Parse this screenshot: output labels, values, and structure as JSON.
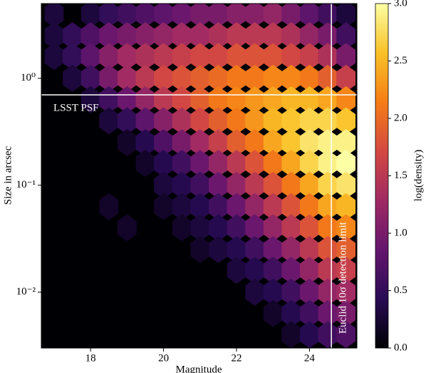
{
  "chart_data": {
    "type": "hexbin",
    "xlabel": "Magnitude",
    "ylabel": "Size in arcsec",
    "colorbar_label": "log(density)",
    "colormap": "inferno",
    "xlim": [
      16.65,
      25.3
    ],
    "xticks": [
      18,
      20,
      22,
      24
    ],
    "ylim": [
      0.003,
      5
    ],
    "yscale": "log",
    "yticks": [
      {
        "value": 1,
        "label": "10⁰"
      },
      {
        "value": 0.1,
        "label": "10⁻¹"
      },
      {
        "value": 0.01,
        "label": "10⁻²"
      }
    ],
    "clim": [
      0,
      3
    ],
    "cticks": [
      {
        "value": 0,
        "label": "0.0"
      },
      {
        "value": 0.5,
        "label": "0.5"
      },
      {
        "value": 1,
        "label": "1.0"
      },
      {
        "value": 1.5,
        "label": "1.5"
      },
      {
        "value": 2,
        "label": "2.0"
      },
      {
        "value": 2.5,
        "label": "2.5"
      },
      {
        "value": 3,
        "label": "3.0"
      }
    ],
    "hline": 0.7,
    "vline": 24.6,
    "annotations": [
      "LSST PSF",
      "Euclid 10σ detection limit"
    ],
    "x": [
      17,
      17.5,
      18,
      18.5,
      19,
      19.5,
      20,
      20.5,
      21,
      21.5,
      22,
      22.5,
      23,
      23.5,
      24,
      24.5,
      25
    ],
    "y": [
      4,
      2.5,
      1.6,
      1,
      0.63,
      0.4,
      0.25,
      0.16,
      0.1,
      0.063,
      0.04,
      0.025,
      0.016,
      0.01,
      0.0063,
      0.004
    ],
    "values": [
      [
        0.3,
        null,
        0.3,
        0.5,
        0.6,
        0.7,
        0.8,
        0.9,
        1.0,
        1.0,
        1.1,
        1.1,
        1.2,
        1.0,
        0.8,
        0.6,
        0.3
      ],
      [
        0.3,
        0.5,
        0.7,
        0.9,
        1.0,
        1.1,
        1.2,
        1.3,
        1.3,
        1.4,
        1.5,
        1.5,
        1.5,
        1.4,
        1.2,
        1.0,
        0.6
      ],
      [
        0.3,
        0.5,
        0.8,
        1.1,
        1.3,
        1.4,
        1.5,
        1.6,
        1.7,
        1.7,
        1.8,
        1.8,
        1.8,
        1.7,
        1.6,
        1.4,
        1.0
      ],
      [
        null,
        0.3,
        0.6,
        1.0,
        1.3,
        1.5,
        1.7,
        1.8,
        1.9,
        2.0,
        2.1,
        2.1,
        2.2,
        2.2,
        2.1,
        1.9,
        1.6
      ],
      [
        null,
        null,
        0.3,
        0.6,
        0.9,
        1.2,
        1.5,
        1.7,
        1.9,
        2.1,
        2.2,
        2.3,
        2.4,
        2.5,
        2.5,
        2.4,
        2.2
      ],
      [
        null,
        null,
        null,
        0.3,
        0.5,
        0.8,
        1.1,
        1.4,
        1.7,
        1.9,
        2.1,
        2.3,
        2.5,
        2.6,
        2.7,
        2.7,
        2.6
      ],
      [
        null,
        null,
        null,
        null,
        0.2,
        0.4,
        0.7,
        1.0,
        1.3,
        1.6,
        1.9,
        2.1,
        2.4,
        2.6,
        2.8,
        2.9,
        2.9
      ],
      [
        null,
        null,
        null,
        null,
        null,
        0.2,
        0.4,
        0.6,
        0.9,
        1.2,
        1.5,
        1.8,
        2.1,
        2.4,
        2.7,
        2.9,
        3.0
      ],
      [
        null,
        null,
        null,
        null,
        null,
        null,
        0.3,
        0.4,
        0.6,
        0.9,
        1.2,
        1.5,
        1.8,
        2.1,
        2.4,
        2.7,
        2.8
      ],
      [
        null,
        null,
        null,
        0.2,
        null,
        null,
        0.2,
        0.3,
        0.4,
        0.6,
        0.9,
        1.2,
        1.5,
        1.8,
        2.1,
        2.4,
        2.5
      ],
      [
        null,
        null,
        null,
        null,
        0.2,
        null,
        null,
        0.2,
        0.3,
        0.4,
        0.6,
        0.9,
        1.2,
        1.5,
        1.8,
        2.1,
        2.2
      ],
      [
        null,
        null,
        null,
        null,
        null,
        null,
        null,
        null,
        0.2,
        0.3,
        0.4,
        0.6,
        0.9,
        1.2,
        1.5,
        1.8,
        1.9
      ],
      [
        null,
        null,
        null,
        null,
        null,
        null,
        null,
        null,
        null,
        null,
        0.3,
        0.4,
        0.6,
        0.9,
        1.2,
        1.5,
        1.6
      ],
      [
        null,
        null,
        null,
        null,
        null,
        null,
        null,
        null,
        null,
        null,
        null,
        0.3,
        0.4,
        0.6,
        0.9,
        1.2,
        1.3
      ],
      [
        null,
        null,
        null,
        null,
        null,
        null,
        null,
        null,
        null,
        null,
        null,
        null,
        0.2,
        0.4,
        0.6,
        0.9,
        1.0
      ],
      [
        null,
        null,
        null,
        null,
        null,
        null,
        null,
        null,
        null,
        null,
        null,
        null,
        null,
        0.2,
        0.4,
        0.6,
        0.7
      ]
    ]
  }
}
